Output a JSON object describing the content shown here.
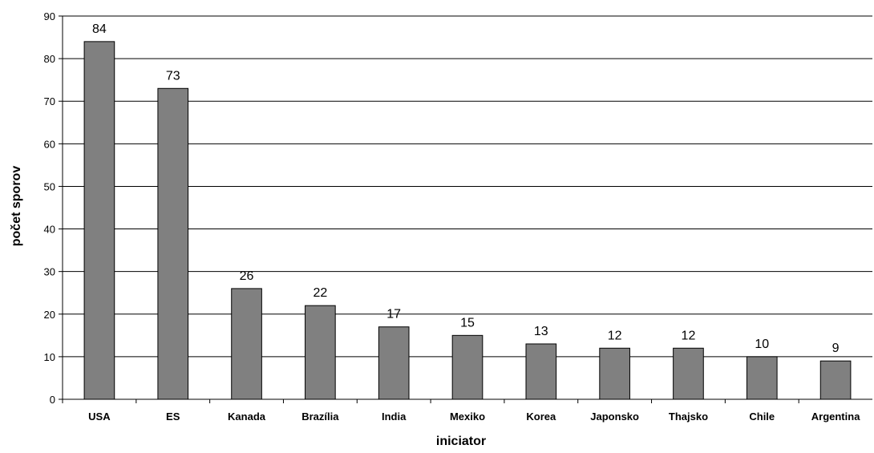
{
  "chart_data": {
    "type": "bar",
    "title": "",
    "xlabel": "iniciator",
    "ylabel": "počet sporov",
    "categories": [
      "USA",
      "ES",
      "Kanada",
      "Brazília",
      "India",
      "Mexiko",
      "Korea",
      "Japonsko",
      "Thajsko",
      "Chile",
      "Argentina"
    ],
    "values": [
      84,
      73,
      26,
      22,
      17,
      15,
      13,
      12,
      12,
      10,
      9
    ],
    "ylim": [
      0,
      90
    ],
    "yticks": [
      0,
      10,
      20,
      30,
      40,
      50,
      60,
      70,
      80,
      90
    ],
    "grid": true,
    "legend": "none",
    "colors": {
      "bar_fill": "#808080",
      "bar_stroke": "#000000",
      "grid": "#000000",
      "axis": "#000000"
    }
  }
}
